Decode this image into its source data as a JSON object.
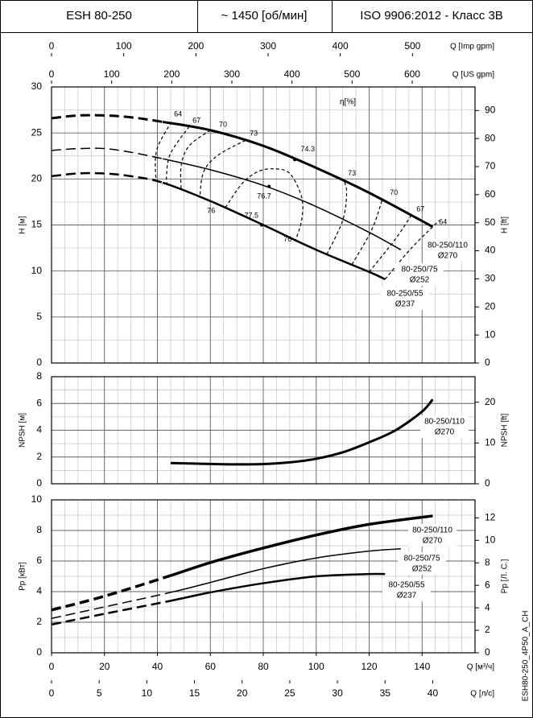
{
  "header": {
    "model": "ESH 80-250",
    "speed": "~ 1450 [об/мин]",
    "standard": "ISO 9906:2012 - Класс 3В"
  },
  "code": "ESH80-250_4P50_A_CH",
  "x_axes": [
    {
      "label": "Q [Imp gpm]",
      "xlim": [
        0,
        586.6
      ],
      "xticks": [
        0,
        100,
        200,
        300,
        400,
        500
      ]
    },
    {
      "label": "Q [US gpm]",
      "xlim": [
        0,
        704.5
      ],
      "xticks": [
        0,
        100,
        200,
        300,
        400,
        500,
        600
      ]
    },
    {
      "label": "Q [м³/ч]",
      "xlim": [
        0,
        160
      ],
      "xticks": [
        0,
        20,
        40,
        60,
        80,
        100,
        120,
        140
      ],
      "x_minor_step": 5,
      "grid": true
    },
    {
      "label": "Q [л/с]",
      "xlim": [
        0,
        44.44
      ],
      "xticks": [
        0,
        5,
        10,
        15,
        20,
        25,
        30,
        35,
        40
      ]
    }
  ],
  "chart_data": [
    {
      "type": "line",
      "ylabel": "H [м]",
      "y2label": "H [ft]",
      "ylim": [
        0,
        30
      ],
      "yticks": [
        0,
        5,
        10,
        15,
        20,
        25,
        30
      ],
      "y_minor_step": 2.5,
      "y2lim": [
        0,
        98.4
      ],
      "y2ticks": [
        0,
        10,
        20,
        30,
        40,
        50,
        60,
        70,
        80,
        90
      ],
      "efficiency_title": "η[%]",
      "series": [
        {
          "name": "80-250/110",
          "diameter": "Ø270",
          "color": "#000000",
          "line_width": 3,
          "x": [
            0,
            10,
            20,
            30,
            42,
            60,
            80,
            100,
            120,
            144
          ],
          "values": [
            26.6,
            26.9,
            26.9,
            26.7,
            26.2,
            25.3,
            23.6,
            21.2,
            18.5,
            14.8
          ],
          "line_style": [
            "dashed",
            "dashed",
            "dashed",
            "dashed",
            "solid",
            "solid",
            "solid",
            "solid",
            "solid",
            "solid"
          ]
        },
        {
          "name": "80-250/75",
          "diameter": "Ø252",
          "color": "#000000",
          "line_width": 1.5,
          "x": [
            0,
            10,
            20,
            30,
            42,
            60,
            80,
            100,
            120,
            132
          ],
          "values": [
            23.1,
            23.3,
            23.3,
            22.9,
            22.2,
            21.0,
            19.3,
            17.0,
            14.2,
            12.3
          ],
          "line_style": [
            "dashed",
            "dashed",
            "dashed",
            "dashed",
            "solid",
            "solid",
            "solid",
            "solid",
            "solid",
            "solid"
          ]
        },
        {
          "name": "80-250/55",
          "diameter": "Ø237",
          "color": "#000000",
          "line_width": 2.5,
          "x": [
            0,
            10,
            20,
            30,
            42,
            60,
            80,
            100,
            120,
            126
          ],
          "values": [
            20.3,
            20.6,
            20.6,
            20.3,
            19.6,
            17.6,
            15.0,
            12.3,
            9.9,
            9.1
          ],
          "line_style": [
            "dashed",
            "dashed",
            "dashed",
            "dashed",
            "solid",
            "solid",
            "solid",
            "solid",
            "solid",
            "solid"
          ]
        }
      ],
      "efficiency_contours": [
        {
          "value": 64,
          "x": [
            45.3,
            39.9,
            39.3,
            40.2
          ],
          "values": [
            26.2,
            23.3,
            20.6,
            19.7
          ]
        },
        {
          "value": 67,
          "x": [
            52,
            45,
            43.5,
            43.6
          ],
          "values": [
            25.7,
            22.8,
            20.6,
            19.5
          ]
        },
        {
          "value": 70,
          "x": [
            60,
            52,
            49,
            49
          ],
          "values": [
            25.3,
            23.6,
            21.5,
            18.9
          ]
        },
        {
          "value": 73,
          "x": [
            73.3,
            63,
            57.5,
            56
          ],
          "values": [
            24.2,
            22.6,
            20.8,
            18.0
          ]
        },
        {
          "value": 76,
          "x": [
            65.7,
            72,
            78,
            84,
            90,
            94.5,
            94.5,
            92
          ],
          "values": [
            16.9,
            19.5,
            20.8,
            21.1,
            20.6,
            18.0,
            15.5,
            13.2
          ]
        },
        {
          "value": 73,
          "x": [
            104,
            110,
            111.5,
            110.5
          ],
          "values": [
            11.8,
            15.5,
            18.5,
            19.8
          ]
        },
        {
          "value": 70,
          "x": [
            113.5,
            121,
            125
          ],
          "values": [
            10.7,
            14.5,
            17.8
          ]
        },
        {
          "value": 67,
          "x": [
            120,
            130,
            136
          ],
          "values": [
            9.9,
            13.5,
            16.1
          ]
        },
        {
          "value": 64,
          "x": [
            126,
            136,
            146.5
          ],
          "values": [
            9.1,
            12.5,
            15.5
          ]
        }
      ],
      "efficiency_labels": [
        {
          "value": 64,
          "x": 47.8,
          "y": 27.0
        },
        {
          "value": 67,
          "x": 54.8,
          "y": 26.3
        },
        {
          "value": 70,
          "x": 64.8,
          "y": 25.9
        },
        {
          "value": 73,
          "x": 76.4,
          "y": 24.9
        },
        {
          "value": 74.3,
          "x": 96.8,
          "y": 23.2
        },
        {
          "value": 76.7,
          "x": 80.3,
          "y": 18.1
        },
        {
          "value": 77.5,
          "x": 75.5,
          "y": 16.0
        },
        {
          "value": 76,
          "x": 60.3,
          "y": 16.5
        },
        {
          "value": 76,
          "x": 89.2,
          "y": 13.4
        },
        {
          "value": 73,
          "x": 113.5,
          "y": 20.6
        },
        {
          "value": 70,
          "x": 129.3,
          "y": 18.5
        },
        {
          "value": 67,
          "x": 139.4,
          "y": 16.7
        },
        {
          "value": 64,
          "x": 147.9,
          "y": 15.3
        }
      ],
      "efficiency_points": [
        {
          "x": 91.9,
          "y": 22.1
        },
        {
          "x": 82.2,
          "y": 19.2
        },
        {
          "x": 79.4,
          "y": 15.0
        }
      ]
    },
    {
      "type": "line",
      "ylabel": "NPSH [м]",
      "y2label": "NPSH [ft]",
      "ylim": [
        0,
        8
      ],
      "yticks": [
        0,
        2,
        4,
        6,
        8
      ],
      "y_minor_step": 1,
      "y2lim": [
        0,
        26.25
      ],
      "y2ticks": [
        0,
        10,
        20
      ],
      "series": [
        {
          "name": "80-250/110",
          "diameter": "Ø270",
          "color": "#000000",
          "line_width": 3,
          "x": [
            45,
            60,
            70,
            80,
            90,
            100,
            110,
            120,
            130,
            140,
            144
          ],
          "values": [
            1.55,
            1.48,
            1.45,
            1.47,
            1.6,
            1.87,
            2.35,
            3.1,
            4.0,
            5.4,
            6.3
          ],
          "line_style": [
            "solid",
            "solid",
            "solid",
            "solid",
            "solid",
            "solid",
            "solid",
            "solid",
            "solid",
            "solid",
            "solid"
          ]
        }
      ]
    },
    {
      "type": "line",
      "ylabel": "Pp [кВт]",
      "y2label": "Pp [Л. С.]",
      "ylim": [
        0,
        10
      ],
      "yticks": [
        0,
        2,
        4,
        6,
        8,
        10
      ],
      "y_minor_step": 1,
      "y2lim": [
        0,
        13.6
      ],
      "y2ticks": [
        0,
        2,
        4,
        6,
        8,
        10,
        12
      ],
      "series": [
        {
          "name": "80-250/110",
          "diameter": "Ø270",
          "color": "#000000",
          "line_width": 3.5,
          "x": [
            0,
            20,
            45,
            60,
            80,
            100,
            120,
            144
          ],
          "values": [
            2.8,
            3.7,
            5.05,
            5.9,
            6.85,
            7.7,
            8.4,
            8.95
          ],
          "line_style": [
            "dashed",
            "dashed",
            "solid",
            "solid",
            "solid",
            "solid",
            "solid",
            "solid"
          ]
        },
        {
          "name": "80-250/75",
          "diameter": "Ø252",
          "color": "#000000",
          "line_width": 1.5,
          "x": [
            0,
            20,
            45,
            60,
            80,
            100,
            120,
            132
          ],
          "values": [
            2.25,
            3.0,
            3.95,
            4.6,
            5.5,
            6.2,
            6.65,
            6.8
          ],
          "line_style": [
            "dashed",
            "dashed",
            "solid",
            "solid",
            "solid",
            "solid",
            "solid",
            "solid"
          ]
        },
        {
          "name": "80-250/55",
          "diameter": "Ø237",
          "color": "#000000",
          "line_width": 2.5,
          "x": [
            0,
            20,
            45,
            60,
            80,
            100,
            120,
            126
          ],
          "values": [
            1.85,
            2.55,
            3.4,
            3.95,
            4.55,
            5.0,
            5.15,
            5.15
          ],
          "line_style": [
            "dashed",
            "dashed",
            "solid",
            "solid",
            "solid",
            "solid",
            "solid",
            "solid"
          ]
        }
      ]
    }
  ]
}
